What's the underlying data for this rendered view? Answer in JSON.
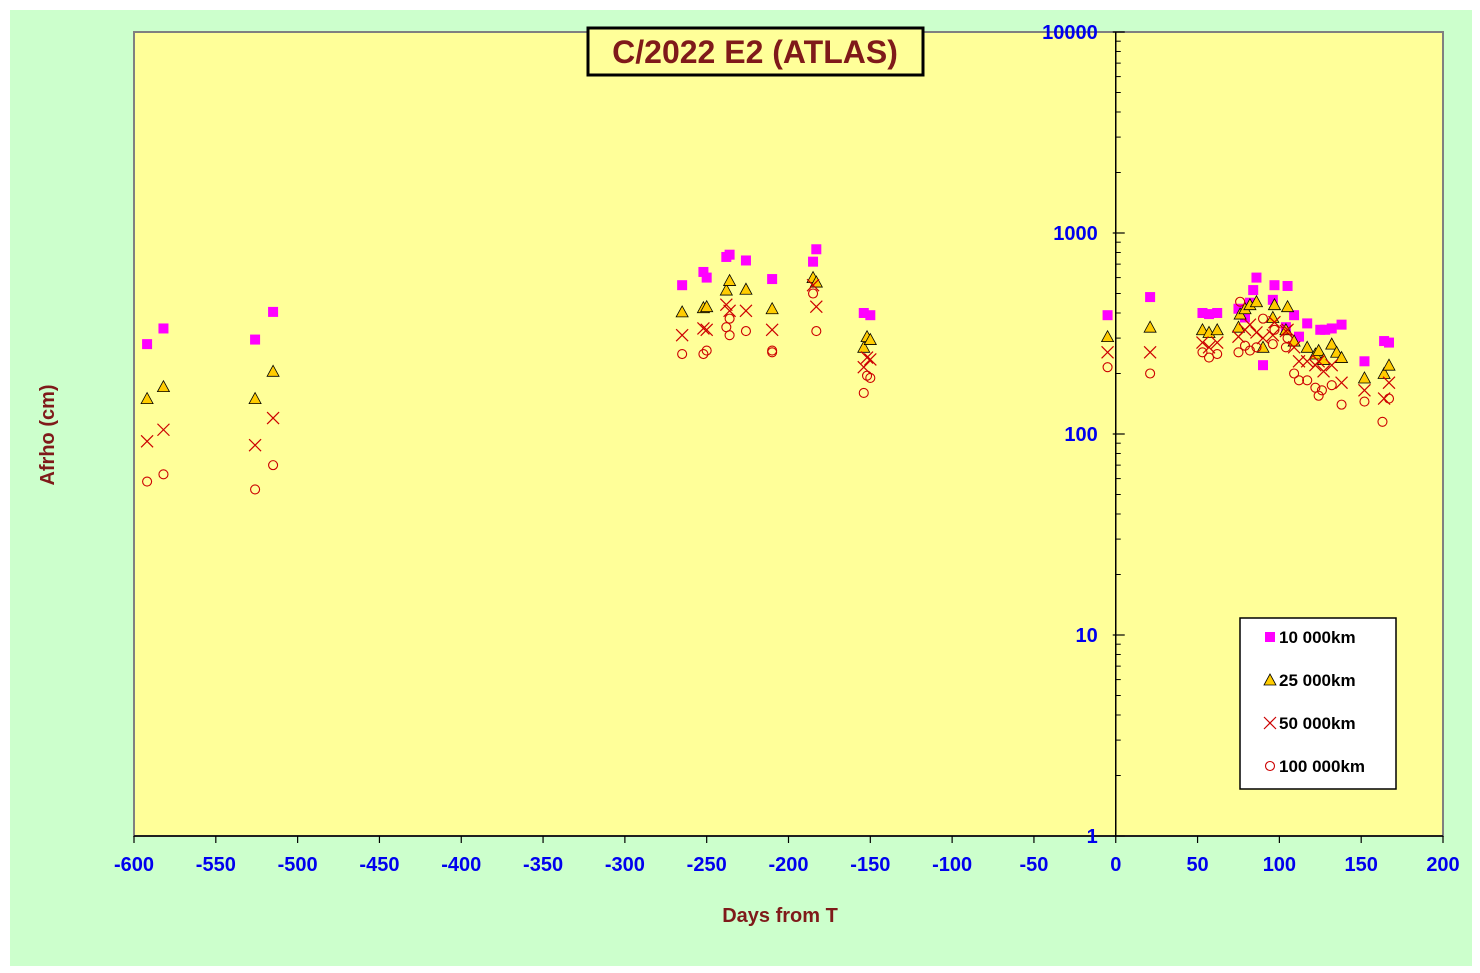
{
  "chart_data": {
    "type": "scatter",
    "title": "C/2022 E2 (ATLAS)",
    "xlabel": "Days from T",
    "ylabel": "Afrho (cm)",
    "xlim": [
      -600,
      200
    ],
    "ylim": [
      1,
      10000
    ],
    "y_scale": "log",
    "x_ticks": [
      -600,
      -550,
      -500,
      -450,
      -400,
      -350,
      -300,
      -250,
      -200,
      -150,
      -100,
      -50,
      0,
      50,
      100,
      150,
      200
    ],
    "y_ticks": [
      1,
      10,
      100,
      1000,
      10000
    ],
    "grid": false,
    "legend_position": "bottom-right",
    "colors": {
      "outer_background": "#ccffcc",
      "plot_background": "#ffff99",
      "tick_labels": "#0000ee",
      "titles": "#7f1a1a",
      "series_10000": "#ff00ff",
      "series_25000": "#ffcc00",
      "series_50000": "#cc0000",
      "series_100000": "#cc0000"
    },
    "series": [
      {
        "name": "10 000km",
        "marker": "square",
        "points": [
          [
            -592,
            280
          ],
          [
            -582,
            335
          ],
          [
            -526,
            295
          ],
          [
            -515,
            405
          ],
          [
            -265,
            550
          ],
          [
            -252,
            640
          ],
          [
            -250,
            600
          ],
          [
            -238,
            760
          ],
          [
            -236,
            780
          ],
          [
            -226,
            730
          ],
          [
            -210,
            590
          ],
          [
            -185,
            720
          ],
          [
            -183,
            830
          ],
          [
            -154,
            400
          ],
          [
            -150,
            390
          ],
          [
            -5,
            390
          ],
          [
            21,
            480
          ],
          [
            53,
            400
          ],
          [
            57,
            395
          ],
          [
            62,
            400
          ],
          [
            75,
            420
          ],
          [
            79,
            380
          ],
          [
            82,
            450
          ],
          [
            84,
            520
          ],
          [
            86,
            600
          ],
          [
            90,
            220
          ],
          [
            96,
            465
          ],
          [
            97,
            550
          ],
          [
            104,
            340
          ],
          [
            105,
            545
          ],
          [
            109,
            390
          ],
          [
            112,
            305
          ],
          [
            117,
            355
          ],
          [
            125,
            330
          ],
          [
            128,
            330
          ],
          [
            132,
            335
          ],
          [
            138,
            350
          ],
          [
            152,
            230
          ],
          [
            164,
            290
          ],
          [
            167,
            285
          ]
        ]
      },
      {
        "name": "25 000km",
        "marker": "triangle",
        "points": [
          [
            -592,
            150
          ],
          [
            -582,
            172
          ],
          [
            -526,
            150
          ],
          [
            -515,
            205
          ],
          [
            -265,
            405
          ],
          [
            -252,
            425
          ],
          [
            -250,
            430
          ],
          [
            -238,
            520
          ],
          [
            -236,
            580
          ],
          [
            -226,
            525
          ],
          [
            -210,
            420
          ],
          [
            -185,
            600
          ],
          [
            -183,
            570
          ],
          [
            -154,
            270
          ],
          [
            -152,
            305
          ],
          [
            -150,
            295
          ],
          [
            -5,
            305
          ],
          [
            21,
            340
          ],
          [
            53,
            330
          ],
          [
            57,
            320
          ],
          [
            62,
            330
          ],
          [
            75,
            340
          ],
          [
            76,
            395
          ],
          [
            79,
            420
          ],
          [
            82,
            440
          ],
          [
            86,
            455
          ],
          [
            90,
            270
          ],
          [
            96,
            380
          ],
          [
            97,
            440
          ],
          [
            104,
            330
          ],
          [
            105,
            430
          ],
          [
            109,
            290
          ],
          [
            117,
            270
          ],
          [
            122,
            250
          ],
          [
            124,
            260
          ],
          [
            127,
            235
          ],
          [
            132,
            280
          ],
          [
            135,
            255
          ],
          [
            138,
            240
          ],
          [
            152,
            190
          ],
          [
            164,
            200
          ],
          [
            167,
            220
          ]
        ]
      },
      {
        "name": "50 000km",
        "marker": "x",
        "points": [
          [
            -592,
            92
          ],
          [
            -582,
            105
          ],
          [
            -526,
            88
          ],
          [
            -515,
            120
          ],
          [
            -265,
            310
          ],
          [
            -252,
            335
          ],
          [
            -250,
            330
          ],
          [
            -238,
            440
          ],
          [
            -236,
            410
          ],
          [
            -226,
            410
          ],
          [
            -210,
            330
          ],
          [
            -185,
            550
          ],
          [
            -183,
            430
          ],
          [
            -154,
            215
          ],
          [
            -152,
            240
          ],
          [
            -150,
            235
          ],
          [
            -5,
            255
          ],
          [
            21,
            255
          ],
          [
            53,
            285
          ],
          [
            57,
            270
          ],
          [
            62,
            285
          ],
          [
            75,
            305
          ],
          [
            79,
            330
          ],
          [
            82,
            350
          ],
          [
            86,
            320
          ],
          [
            90,
            300
          ],
          [
            96,
            310
          ],
          [
            97,
            360
          ],
          [
            104,
            325
          ],
          [
            105,
            330
          ],
          [
            109,
            270
          ],
          [
            112,
            230
          ],
          [
            117,
            230
          ],
          [
            122,
            220
          ],
          [
            124,
            230
          ],
          [
            127,
            205
          ],
          [
            132,
            220
          ],
          [
            138,
            180
          ],
          [
            152,
            165
          ],
          [
            164,
            150
          ],
          [
            167,
            180
          ]
        ]
      },
      {
        "name": "100 000km",
        "marker": "circle",
        "points": [
          [
            -592,
            58
          ],
          [
            -582,
            63
          ],
          [
            -526,
            53
          ],
          [
            -515,
            70
          ],
          [
            -265,
            250
          ],
          [
            -252,
            250
          ],
          [
            -250,
            260
          ],
          [
            -238,
            340
          ],
          [
            -236,
            310
          ],
          [
            -236,
            375
          ],
          [
            -226,
            325
          ],
          [
            -210,
            255
          ],
          [
            -210,
            260
          ],
          [
            -185,
            500
          ],
          [
            -183,
            325
          ],
          [
            -154,
            160
          ],
          [
            -152,
            195
          ],
          [
            -150,
            190
          ],
          [
            -5,
            215
          ],
          [
            21,
            200
          ],
          [
            53,
            255
          ],
          [
            57,
            240
          ],
          [
            62,
            250
          ],
          [
            75,
            255
          ],
          [
            76,
            455
          ],
          [
            79,
            275
          ],
          [
            82,
            260
          ],
          [
            86,
            270
          ],
          [
            90,
            375
          ],
          [
            96,
            280
          ],
          [
            97,
            330
          ],
          [
            104,
            270
          ],
          [
            105,
            300
          ],
          [
            109,
            200
          ],
          [
            112,
            185
          ],
          [
            117,
            185
          ],
          [
            122,
            170
          ],
          [
            124,
            155
          ],
          [
            126,
            165
          ],
          [
            132,
            175
          ],
          [
            138,
            140
          ],
          [
            152,
            145
          ],
          [
            163,
            115
          ],
          [
            167,
            150
          ]
        ]
      }
    ]
  }
}
